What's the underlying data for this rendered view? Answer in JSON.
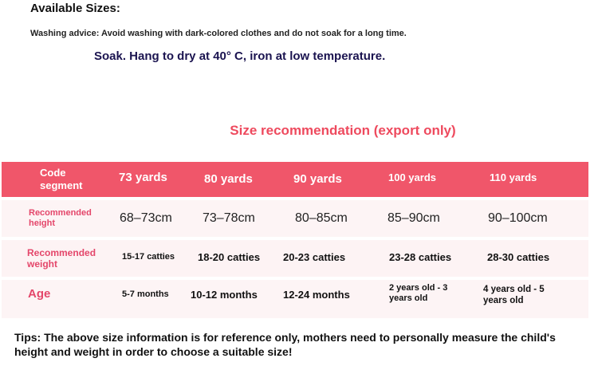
{
  "available_sizes": "Available Sizes:",
  "washing_advice": "Washing advice: Avoid washing with dark-colored clothes and do not soak for a long time.",
  "care_line": "Soak. Hang to dry at 40° C, iron at low temperature.",
  "section_title": "Size recommendation (export only)",
  "table": {
    "header": [
      "Code segment",
      "73 yards",
      "80 yards",
      "90 yards",
      "100 yards",
      "110 yards"
    ],
    "rows": [
      {
        "label": "Recommended height",
        "values": [
          "68–73cm",
          "73–78cm",
          "80–85cm",
          "85–90cm",
          "90–100cm"
        ]
      },
      {
        "label": "Recommended weight",
        "values": [
          "15-17 catties",
          "18-20 catties",
          "20-23 catties",
          "23-28 catties",
          "28-30 catties"
        ]
      },
      {
        "label": "Age",
        "values": [
          "5-7 months",
          "10-12 months",
          "12-24 months",
          "2 years old - 3 years old",
          "4 years old - 5 years old"
        ]
      }
    ]
  },
  "tips": "Tips: The above size information is for reference only, mothers need to personally measure the child's height and weight in order to choose a suitable size!",
  "colors": {
    "accent": "#f0566a",
    "label": "#e4466a"
  }
}
